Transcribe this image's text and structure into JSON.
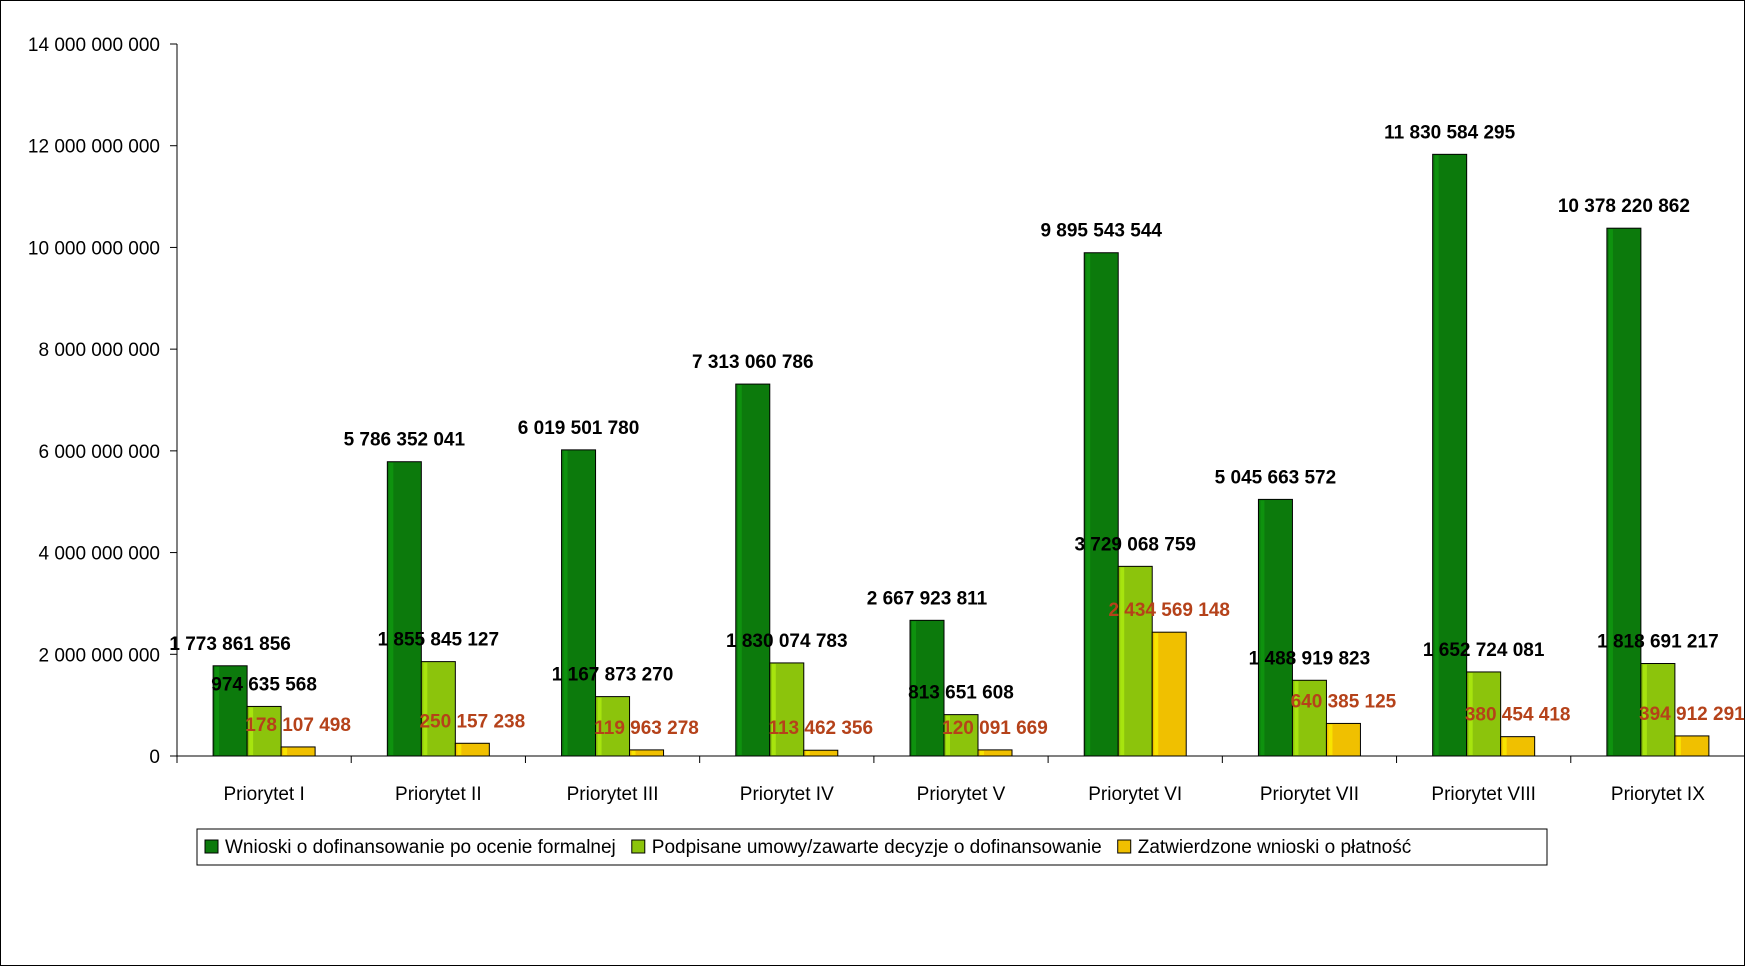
{
  "chart_data": {
    "type": "bar",
    "title": "",
    "xlabel": "",
    "ylabel": "",
    "ylim": [
      0,
      14000000000
    ],
    "yticks": [
      0,
      2000000000,
      4000000000,
      6000000000,
      8000000000,
      10000000000,
      12000000000,
      14000000000
    ],
    "ytick_labels": [
      "0",
      "2 000 000 000",
      "4 000 000 000",
      "6 000 000 000",
      "8 000 000 000",
      "10 000 000 000",
      "12 000 000 000",
      "14 000 000 000"
    ],
    "grid": false,
    "legend_position": "bottom",
    "categories": [
      "Priorytet I",
      "Priorytet II",
      "Priorytet III",
      "Priorytet IV",
      "Priorytet V",
      "Priorytet VI",
      "Priorytet VII",
      "Priorytet VIII",
      "Priorytet IX"
    ],
    "series": [
      {
        "name": "Wnioski o dofinansowanie po ocenie formalnej",
        "color": "#0c7a0c",
        "label_color": "#000000",
        "values": [
          1773861856,
          5786352041,
          6019501780,
          7313060786,
          2667923811,
          9895543544,
          5045663572,
          11830584295,
          10378220862
        ],
        "labels": [
          "1 773 861 856",
          "5 786 352 041",
          "6 019 501 780",
          "7 313 060 786",
          "2 667 923 811",
          "9 895 543 544",
          "5 045 663 572",
          "11 830 584 295",
          "10 378 220 862"
        ]
      },
      {
        "name": "Podpisane umowy/zawarte decyzje o dofinansowanie",
        "color": "#8cc40c",
        "label_color": "#000000",
        "values": [
          974635568,
          1855845127,
          1167873270,
          1830074783,
          813651608,
          3729068759,
          1488919823,
          1652724081,
          1818691217
        ],
        "labels": [
          "974 635 568",
          "1 855 845 127",
          "1 167 873 270",
          "1 830 074 783",
          "813 651 608",
          "3 729 068 759",
          "1 488 919 823",
          "1 652 724 081",
          "1 818 691 217"
        ]
      },
      {
        "name": "Zatwierdzone wnioski o płatność",
        "color": "#f0c000",
        "label_color": "#b5421a",
        "values": [
          178107498,
          250157238,
          119963278,
          113462356,
          120091669,
          2434569148,
          640385125,
          380454418,
          394912291
        ],
        "labels": [
          "178 107 498",
          "250 157 238",
          "119 963 278",
          "113 462 356",
          "120 091 669",
          "2 434 569 148",
          "640 385 125",
          "380 454 418",
          "394 912 291"
        ]
      }
    ]
  }
}
